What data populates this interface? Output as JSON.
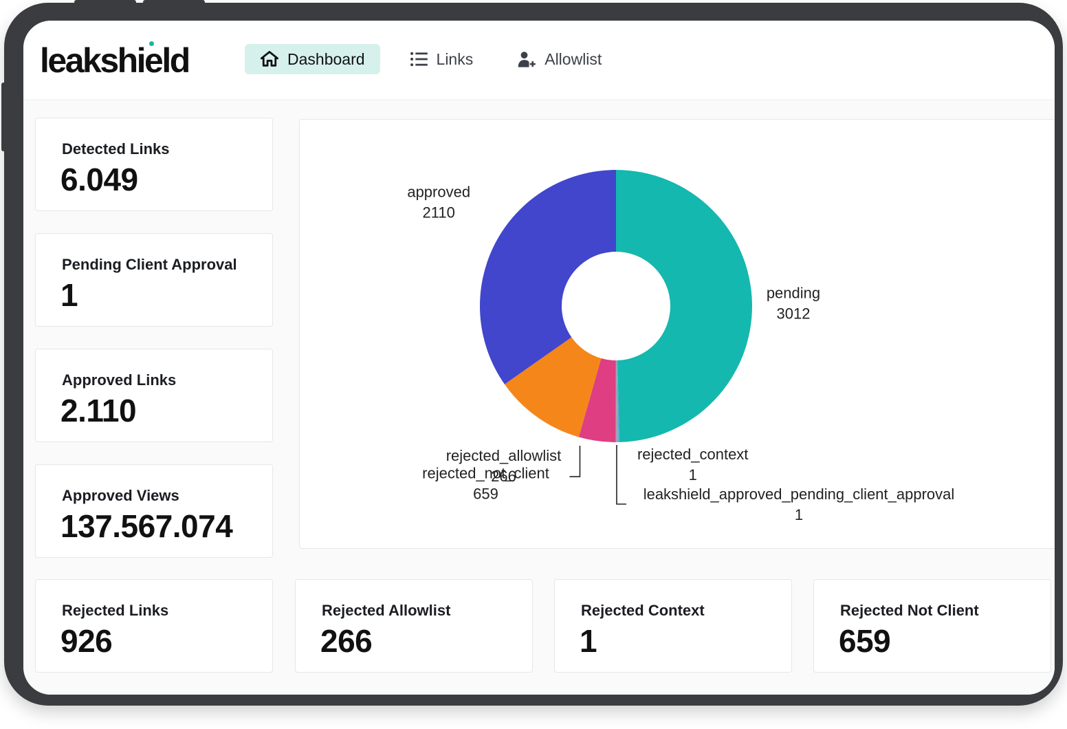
{
  "app": {
    "logo": "leakshield"
  },
  "nav": [
    {
      "label": "Dashboard",
      "icon": "home-icon",
      "active": true
    },
    {
      "label": "Links",
      "icon": "list-icon",
      "active": false
    },
    {
      "label": "Allowlist",
      "icon": "add-user-icon",
      "active": false
    }
  ],
  "stats": {
    "detected_links": {
      "label": "Detected Links",
      "value": "6.049"
    },
    "pending_client_approval": {
      "label": "Pending Client Approval",
      "value": "1"
    },
    "approved_links": {
      "label": "Approved Links",
      "value": "2.110"
    },
    "approved_views": {
      "label": "Approved Views",
      "value": "137.567.074"
    },
    "rejected_links": {
      "label": "Rejected Links",
      "value": "926"
    },
    "rejected_allowlist": {
      "label": "Rejected Allowlist",
      "value": "266"
    },
    "rejected_context": {
      "label": "Rejected Context",
      "value": "1"
    },
    "rejected_not_client": {
      "label": "Rejected Not Client",
      "value": "659"
    }
  },
  "colors": {
    "accent": "#d6f1ec",
    "pending": "#14b8ae",
    "approved": "#4146cc",
    "rejected_not_client": "#f5861a",
    "rejected_allowlist": "#df3e82",
    "rejected_context": "#6aa7d6",
    "leakshield_approved_pending_client_approval": "#a0a4ad"
  },
  "chart_data": {
    "type": "pie",
    "donut": true,
    "categories": [
      "pending",
      "rejected_context",
      "leakshield_approved_pending_client_approval",
      "rejected_allowlist",
      "rejected_not_client",
      "approved"
    ],
    "values": [
      3012,
      1,
      1,
      266,
      659,
      2110
    ],
    "value_labels": [
      "3012",
      "1",
      "1",
      "266",
      "659",
      "2110"
    ]
  }
}
